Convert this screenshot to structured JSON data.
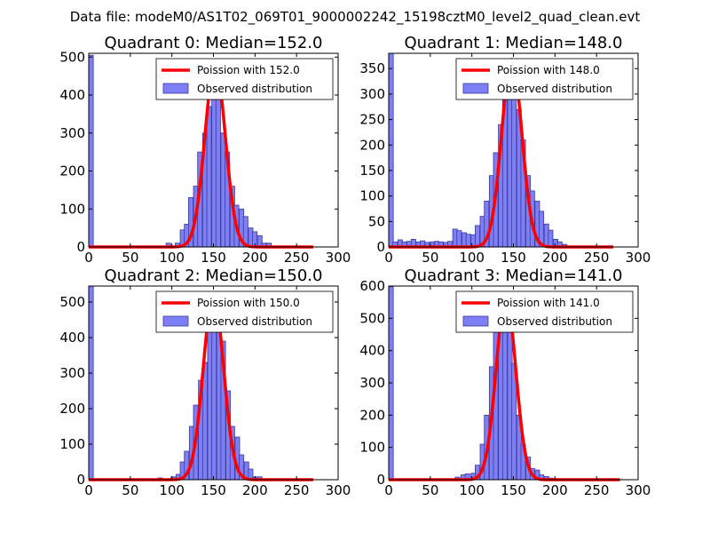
{
  "suptitle": "Data file: modeM0/AS1T02_069T01_9000002242_15198cztM0_level2_quad_clean.evt",
  "colors": {
    "bar_fill": "#7f7ff5",
    "bar_edge": "#3a3a9a",
    "poisson": "#ff0000"
  },
  "legend": {
    "observed": "Observed distribution",
    "poisson_prefix": "Poission with "
  },
  "chart_data": [
    {
      "type": "bar",
      "title": "Quadrant 0: Median=152.0",
      "median": 152.0,
      "poisson_label": "Poission with 152.0",
      "xlim": [
        0,
        300
      ],
      "ylim": [
        0,
        510
      ],
      "xticks": [
        0,
        50,
        100,
        150,
        200,
        250,
        300
      ],
      "yticks": [
        0,
        100,
        200,
        300,
        400,
        500
      ],
      "bin_width": 5.5,
      "bins": [
        [
          0,
          505
        ],
        [
          93,
          10
        ],
        [
          104,
          10
        ],
        [
          110,
          45
        ],
        [
          115,
          60
        ],
        [
          120,
          130
        ],
        [
          126,
          160
        ],
        [
          131,
          250
        ],
        [
          137,
          300
        ],
        [
          142,
          370
        ],
        [
          148,
          430
        ],
        [
          153,
          410
        ],
        [
          159,
          300
        ],
        [
          164,
          250
        ],
        [
          170,
          160
        ],
        [
          175,
          110
        ],
        [
          181,
          100
        ],
        [
          186,
          80
        ],
        [
          192,
          50
        ],
        [
          197,
          40
        ],
        [
          203,
          30
        ],
        [
          208,
          10
        ],
        [
          214,
          10
        ]
      ],
      "poisson_max": 480,
      "poisson_xmax": 270
    },
    {
      "type": "bar",
      "title": "Quadrant 1: Median=148.0",
      "median": 148.0,
      "poisson_label": "Poission with 148.0",
      "xlim": [
        0,
        300
      ],
      "ylim": [
        0,
        380
      ],
      "xticks": [
        0,
        50,
        100,
        150,
        200,
        250,
        300
      ],
      "yticks": [
        0,
        50,
        100,
        150,
        200,
        250,
        300,
        350
      ],
      "bin_width": 5.5,
      "bins": [
        [
          0,
          380
        ],
        [
          5,
          10
        ],
        [
          11,
          14
        ],
        [
          16,
          10
        ],
        [
          22,
          11
        ],
        [
          27,
          15
        ],
        [
          33,
          10
        ],
        [
          38,
          12
        ],
        [
          44,
          9
        ],
        [
          49,
          10
        ],
        [
          55,
          11
        ],
        [
          60,
          10
        ],
        [
          66,
          9
        ],
        [
          71,
          11
        ],
        [
          77,
          35
        ],
        [
          82,
          32
        ],
        [
          88,
          28
        ],
        [
          93,
          25
        ],
        [
          99,
          24
        ],
        [
          104,
          42
        ],
        [
          110,
          60
        ],
        [
          115,
          90
        ],
        [
          121,
          140
        ],
        [
          126,
          185
        ],
        [
          132,
          240
        ],
        [
          137,
          300
        ],
        [
          143,
          330
        ],
        [
          148,
          330
        ],
        [
          154,
          270
        ],
        [
          159,
          210
        ],
        [
          165,
          140
        ],
        [
          170,
          110
        ],
        [
          176,
          90
        ],
        [
          181,
          70
        ],
        [
          187,
          45
        ],
        [
          192,
          33
        ],
        [
          198,
          15
        ],
        [
          203,
          10
        ],
        [
          209,
          5
        ]
      ],
      "poisson_max": 368,
      "poisson_xmax": 270
    },
    {
      "type": "bar",
      "title": "Quadrant 2: Median=150.0",
      "median": 150.0,
      "poisson_label": "Poission with 150.0",
      "xlim": [
        0,
        300
      ],
      "ylim": [
        0,
        545
      ],
      "xticks": [
        0,
        50,
        100,
        150,
        200,
        250,
        300
      ],
      "yticks": [
        0,
        100,
        200,
        300,
        400,
        500
      ],
      "bin_width": 5.5,
      "bins": [
        [
          0,
          545
        ],
        [
          83,
          5
        ],
        [
          99,
          8
        ],
        [
          105,
          15
        ],
        [
          110,
          50
        ],
        [
          115,
          80
        ],
        [
          121,
          150
        ],
        [
          126,
          210
        ],
        [
          132,
          280
        ],
        [
          137,
          330
        ],
        [
          143,
          470
        ],
        [
          148,
          510
        ],
        [
          154,
          490
        ],
        [
          159,
          390
        ],
        [
          165,
          250
        ],
        [
          170,
          150
        ],
        [
          176,
          120
        ],
        [
          181,
          70
        ],
        [
          187,
          50
        ],
        [
          192,
          30
        ],
        [
          198,
          8
        ],
        [
          203,
          8
        ]
      ],
      "poisson_max": 520,
      "poisson_xmax": 270
    },
    {
      "type": "bar",
      "title": "Quadrant 3: Median=141.0",
      "median": 141.0,
      "poisson_label": "Poission with 141.0",
      "xlim": [
        0,
        300
      ],
      "ylim": [
        0,
        600
      ],
      "xticks": [
        0,
        50,
        100,
        150,
        200,
        250,
        300
      ],
      "yticks": [
        0,
        100,
        200,
        300,
        400,
        500,
        600
      ],
      "bin_width": 5.5,
      "bins": [
        [
          0,
          598
        ],
        [
          80,
          8
        ],
        [
          87,
          15
        ],
        [
          92,
          18
        ],
        [
          99,
          20
        ],
        [
          104,
          45
        ],
        [
          110,
          110
        ],
        [
          115,
          200
        ],
        [
          121,
          350
        ],
        [
          126,
          470
        ],
        [
          132,
          520
        ],
        [
          137,
          570
        ],
        [
          143,
          525
        ],
        [
          148,
          360
        ],
        [
          154,
          200
        ],
        [
          159,
          110
        ],
        [
          165,
          70
        ],
        [
          170,
          35
        ],
        [
          176,
          30
        ],
        [
          181,
          15
        ],
        [
          187,
          10
        ],
        [
          192,
          5
        ]
      ],
      "poisson_max": 565,
      "poisson_xmax": 278
    }
  ]
}
